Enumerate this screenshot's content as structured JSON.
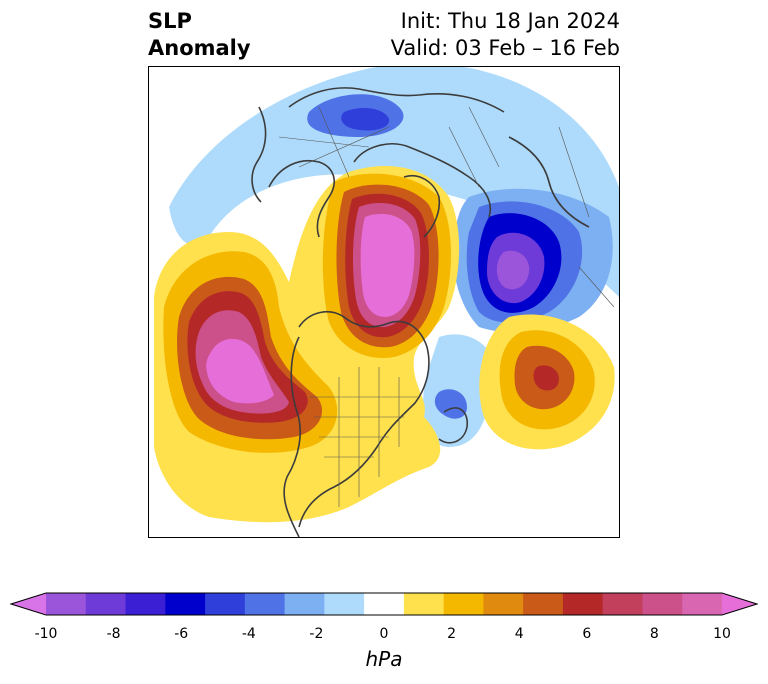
{
  "title": {
    "variable_line1": "SLP",
    "variable_line2": "Anomaly",
    "init": "Init: Thu 18 Jan 2024",
    "valid": "Valid: 03 Feb – 16 Feb"
  },
  "colorbar": {
    "units": "hPa",
    "ticks": [
      "-10",
      "-8",
      "-6",
      "-4",
      "-2",
      "0",
      "2",
      "4",
      "6",
      "8",
      "10"
    ],
    "colors": [
      "#d873e8",
      "#9b55db",
      "#6e3ad8",
      "#3b1fd4",
      "#0000cc",
      "#2f3fd9",
      "#4f73e6",
      "#7db0f2",
      "#aedbfb",
      "#ffffff",
      "#ffe14d",
      "#f5b800",
      "#e08a0f",
      "#c95a18",
      "#b52828",
      "#c2405c",
      "#cc508a",
      "#d966b0",
      "#e66ed8"
    ]
  },
  "map": {
    "projection": "north-polar-stereographic",
    "anomaly_colors": {
      "strong_positive": "#e66ed8",
      "positive": "#b52828",
      "weak_positive": "#ffe14d",
      "strong_negative": "#6e3ad8",
      "negative": "#0000cc",
      "weak_negative": "#aedbfb"
    }
  }
}
